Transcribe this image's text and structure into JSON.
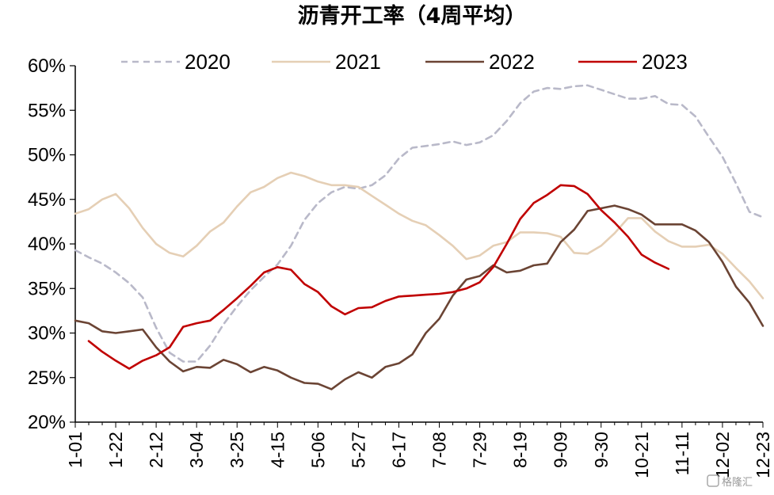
{
  "chart_data": {
    "type": "line",
    "title": "沥青开工率（4周平均）",
    "xlabel": "",
    "ylabel": "",
    "ylim": [
      20,
      60
    ],
    "y_ticks": [
      "60%",
      "55%",
      "50%",
      "45%",
      "40%",
      "35%",
      "30%",
      "25%",
      "20%"
    ],
    "x_ticks": [
      "1-01",
      "1-22",
      "2-12",
      "3-04",
      "3-25",
      "4-15",
      "5-06",
      "5-27",
      "6-17",
      "7-08",
      "7-29",
      "8-19",
      "9-09",
      "9-30",
      "10-21",
      "11-11",
      "12-02",
      "12-23"
    ],
    "x_unit": "week index (0 = 1-01, 1 week per step)",
    "legend_position": "top",
    "grid": false,
    "series": [
      {
        "name": "2020",
        "color": "#b9b9c9",
        "dash": "8,6",
        "x": [
          0,
          1,
          2,
          3,
          4,
          5,
          6,
          7,
          8,
          9,
          10,
          11,
          12,
          13,
          14,
          15,
          16,
          17,
          18,
          19,
          20,
          21,
          22,
          23,
          24,
          25,
          26,
          27,
          28,
          29,
          30,
          31,
          32,
          33,
          34,
          35,
          36,
          37,
          38,
          39,
          40,
          41,
          42,
          43,
          44,
          45,
          46,
          47,
          48,
          49,
          50,
          51
        ],
        "values": [
          39.3,
          38.5,
          37.8,
          36.8,
          35.6,
          34.0,
          30.6,
          27.8,
          26.8,
          26.8,
          28.6,
          31.0,
          33.0,
          34.8,
          36.3,
          37.7,
          39.8,
          42.7,
          44.6,
          45.8,
          46.4,
          46.2,
          46.6,
          47.7,
          49.6,
          50.8,
          51.0,
          51.2,
          51.5,
          51.1,
          51.4,
          52.2,
          53.8,
          55.8,
          57.1,
          57.5,
          57.4,
          57.7,
          57.8,
          57.3,
          56.8,
          56.3,
          56.3,
          56.6,
          55.7,
          55.6,
          54.3,
          52.0,
          49.8,
          46.8,
          43.6,
          43.0
        ]
      },
      {
        "name": "2021",
        "color": "#e5cfb5",
        "dash": "",
        "x": [
          0,
          1,
          2,
          3,
          4,
          5,
          6,
          7,
          8,
          9,
          10,
          11,
          12,
          13,
          14,
          15,
          16,
          17,
          18,
          19,
          20,
          21,
          22,
          23,
          24,
          25,
          26,
          27,
          28,
          29,
          30,
          31,
          32,
          33,
          34,
          35,
          36,
          37,
          38,
          39,
          40,
          41,
          42,
          43,
          44,
          45,
          46,
          47,
          48,
          49,
          50,
          51
        ],
        "values": [
          43.4,
          43.9,
          45.0,
          45.6,
          44.0,
          41.8,
          40.0,
          39.0,
          38.6,
          39.8,
          41.4,
          42.4,
          44.2,
          45.8,
          46.4,
          47.4,
          48.0,
          47.6,
          47.0,
          46.6,
          46.6,
          46.4,
          45.4,
          44.4,
          43.4,
          42.6,
          42.1,
          41.0,
          39.8,
          38.3,
          38.7,
          39.8,
          40.2,
          41.3,
          41.3,
          41.2,
          40.8,
          39.0,
          38.9,
          39.8,
          41.2,
          42.9,
          42.9,
          41.4,
          40.3,
          39.7,
          39.7,
          39.9,
          38.9,
          37.3,
          35.8,
          33.9
        ]
      },
      {
        "name": "2022",
        "color": "#6b4434",
        "dash": "",
        "x": [
          0,
          1,
          2,
          3,
          4,
          5,
          6,
          7,
          8,
          9,
          10,
          11,
          12,
          13,
          14,
          15,
          16,
          17,
          18,
          19,
          20,
          21,
          22,
          23,
          24,
          25,
          26,
          27,
          28,
          29,
          30,
          31,
          32,
          33,
          34,
          35,
          36,
          37,
          38,
          39,
          40,
          41,
          42,
          43,
          44,
          45,
          46,
          47,
          48,
          49,
          50,
          51
        ],
        "values": [
          31.4,
          31.1,
          30.2,
          30.0,
          30.2,
          30.4,
          28.4,
          26.8,
          25.7,
          26.2,
          26.1,
          27.0,
          26.5,
          25.6,
          26.2,
          25.8,
          25.0,
          24.4,
          24.3,
          23.7,
          24.8,
          25.6,
          25.0,
          26.2,
          26.6,
          27.6,
          30.0,
          31.6,
          34.2,
          36.0,
          36.4,
          37.6,
          36.8,
          37.0,
          37.6,
          37.8,
          40.2,
          41.6,
          43.7,
          44.0,
          44.3,
          43.9,
          43.3,
          42.2,
          42.2,
          42.2,
          41.5,
          40.2,
          38.0,
          35.2,
          33.4,
          30.8
        ]
      },
      {
        "name": "2023",
        "color": "#c00000",
        "dash": "",
        "x": [
          1,
          2,
          3,
          4,
          5,
          6,
          7,
          8,
          9,
          10,
          11,
          12,
          13,
          14,
          15,
          16,
          17,
          18,
          19,
          20,
          21,
          22,
          23,
          24,
          25,
          26,
          27,
          28,
          29,
          30,
          31,
          32,
          33,
          34,
          35,
          36,
          37,
          38,
          39,
          40,
          41,
          42,
          43,
          44
        ],
        "values": [
          29.1,
          27.9,
          26.9,
          26.0,
          26.9,
          27.5,
          28.4,
          30.7,
          31.1,
          31.4,
          32.6,
          33.9,
          35.3,
          36.8,
          37.4,
          37.1,
          35.5,
          34.6,
          33.0,
          32.1,
          32.8,
          32.9,
          33.6,
          34.1,
          34.2,
          34.3,
          34.4,
          34.6,
          35.0,
          35.7,
          37.4,
          40.0,
          42.8,
          44.6,
          45.5,
          46.6,
          46.5,
          45.6,
          43.8,
          42.4,
          40.8,
          38.8,
          37.9,
          37.2
        ]
      }
    ]
  },
  "watermark": "格隆汇"
}
